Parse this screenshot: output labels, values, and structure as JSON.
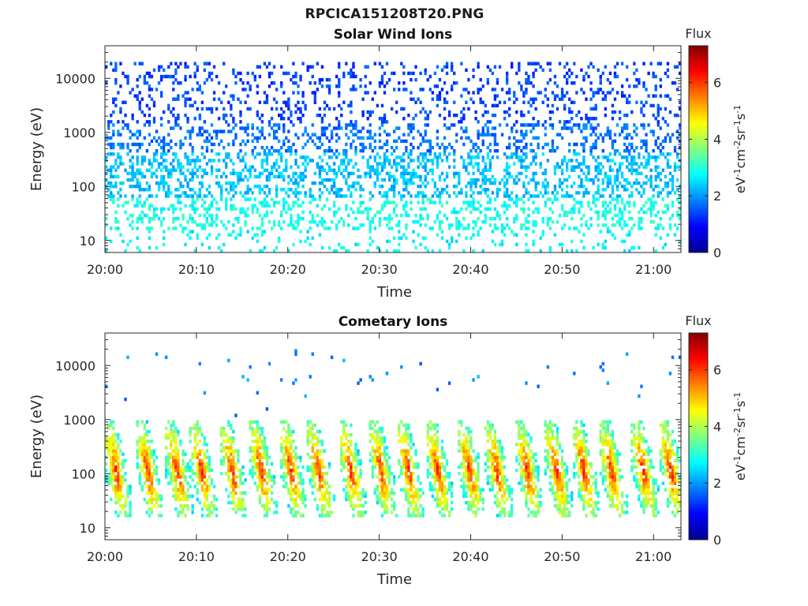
{
  "figure": {
    "title": "RPCICA151208T20.PNG"
  },
  "colors": {
    "colormap": [
      "#00008f",
      "#0000ff",
      "#0080ff",
      "#00ffff",
      "#80ff80",
      "#ffff00",
      "#ff8000",
      "#ff0000",
      "#800000"
    ]
  },
  "chart_data": [
    {
      "type": "heatmap",
      "title": "Solar Wind Ions",
      "xlabel": "Time",
      "ylabel": "Energy (eV)",
      "x_tick_labels": [
        "20:00",
        "20:10",
        "20:20",
        "20:30",
        "20:40",
        "20:50",
        "21:00"
      ],
      "x_range_minutes": [
        0,
        63
      ],
      "y_scale": "log",
      "y_tick_labels": [
        "10",
        "100",
        "1000",
        "10000"
      ],
      "y_range": [
        6,
        40000
      ],
      "colorbar": {
        "title": "Flux",
        "label": "eV-1cm-2sr-1s-1",
        "tick_labels": [
          "0",
          "2",
          "4",
          "6"
        ],
        "range": [
          0,
          7.3
        ]
      },
      "energy_bands": [
        {
          "energy_min": 6,
          "energy_max": 15,
          "log_flux": 2.7
        },
        {
          "energy_min": 15,
          "energy_max": 60,
          "log_flux": 2.9
        },
        {
          "energy_min": 60,
          "energy_max": 400,
          "log_flux": 2.3
        },
        {
          "energy_min": 400,
          "energy_max": 1500,
          "log_flux": 1.7
        },
        {
          "energy_min": 1500,
          "energy_max": 20000,
          "log_flux": 1.4
        }
      ]
    },
    {
      "type": "heatmap",
      "title": "Cometary Ions",
      "xlabel": "Time",
      "ylabel": "Energy (eV)",
      "x_tick_labels": [
        "20:00",
        "20:10",
        "20:20",
        "20:30",
        "20:40",
        "20:50",
        "21:00"
      ],
      "x_range_minutes": [
        0,
        63
      ],
      "y_scale": "log",
      "y_tick_labels": [
        "10",
        "100",
        "1000",
        "10000"
      ],
      "y_range": [
        6,
        40000
      ],
      "colorbar": {
        "title": "Flux",
        "label": "eV-1cm-2sr-1s-1",
        "tick_labels": [
          "0",
          "2",
          "4",
          "6"
        ],
        "range": [
          0,
          7.3
        ]
      },
      "burst_times_minutes": [
        0.3,
        3.8,
        7.0,
        9.7,
        13.0,
        16.2,
        19.5,
        22.5,
        26.0,
        29.3,
        32.3,
        35.5,
        39.0,
        42.0,
        45.3,
        48.5,
        51.5,
        54.5,
        58.0,
        61.0
      ],
      "burst_energy_range": [
        15,
        1000
      ],
      "burst_peak_log_flux": 6.2,
      "high_energy_sporadic": {
        "energy_min": 2500,
        "energy_max": 20000,
        "log_flux": 1.5
      }
    }
  ]
}
